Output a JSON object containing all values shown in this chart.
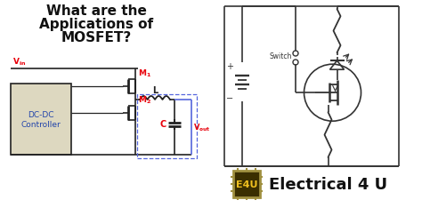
{
  "title_line1": "What are the",
  "title_line2": "Applications of",
  "title_line3": "MOSFET?",
  "title_fontsize": 11,
  "bg_color": "#ffffff",
  "left_circuit": {
    "box_label": "DC-DC\nController",
    "box_color": "#ddd8c0",
    "red_color": "#e8000a",
    "blue_color": "#5566dd",
    "black_color": "#222222"
  },
  "right_circuit": {
    "switch_label": "Switch",
    "elec4u_label": "Electrical 4 U",
    "e4u_bg": "#3a2e00",
    "e4u_border": "#a09040",
    "e4u_text": "E4U",
    "line_color": "#333333"
  }
}
